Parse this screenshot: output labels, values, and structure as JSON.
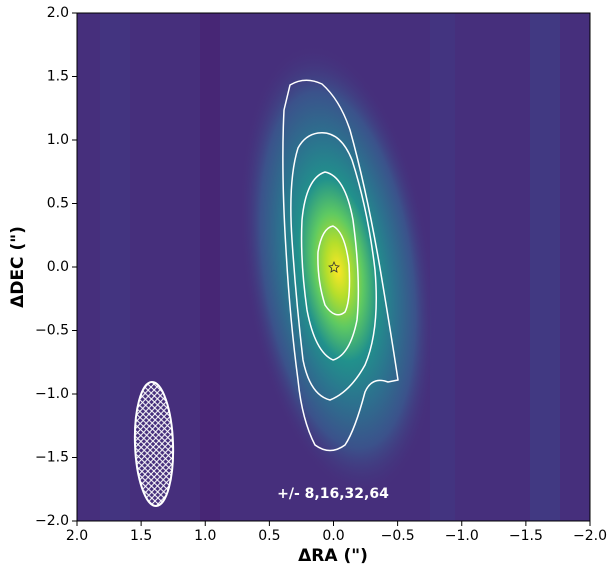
{
  "chart_data": {
    "type": "image",
    "xlabel": "ΔRA (\")",
    "ylabel": "ΔDEC (\")",
    "annotation": "+/- 8,16,32,64",
    "xlim": [
      2,
      -2
    ],
    "ylim": [
      -2,
      2
    ],
    "xticks": [
      {
        "value": 2,
        "label": "2.0"
      },
      {
        "value": 1.5,
        "label": "1.5"
      },
      {
        "value": 1,
        "label": "1.0"
      },
      {
        "value": 0.5,
        "label": "0.5"
      },
      {
        "value": 0,
        "label": "0.0"
      },
      {
        "value": -0.5,
        "label": "−0.5"
      },
      {
        "value": -1,
        "label": "−1.0"
      },
      {
        "value": -1.5,
        "label": "−1.5"
      },
      {
        "value": -2,
        "label": "−2.0"
      }
    ],
    "yticks": [
      {
        "value": -2,
        "label": "−2.0"
      },
      {
        "value": -1.5,
        "label": "−1.5"
      },
      {
        "value": -1,
        "label": "−1.0"
      },
      {
        "value": -0.5,
        "label": "−0.5"
      },
      {
        "value": 0,
        "label": "0.0"
      },
      {
        "value": 0.5,
        "label": "0.5"
      },
      {
        "value": 1,
        "label": "1.0"
      },
      {
        "value": 1.5,
        "label": "1.5"
      },
      {
        "value": 2,
        "label": "2.0"
      }
    ]
  }
}
